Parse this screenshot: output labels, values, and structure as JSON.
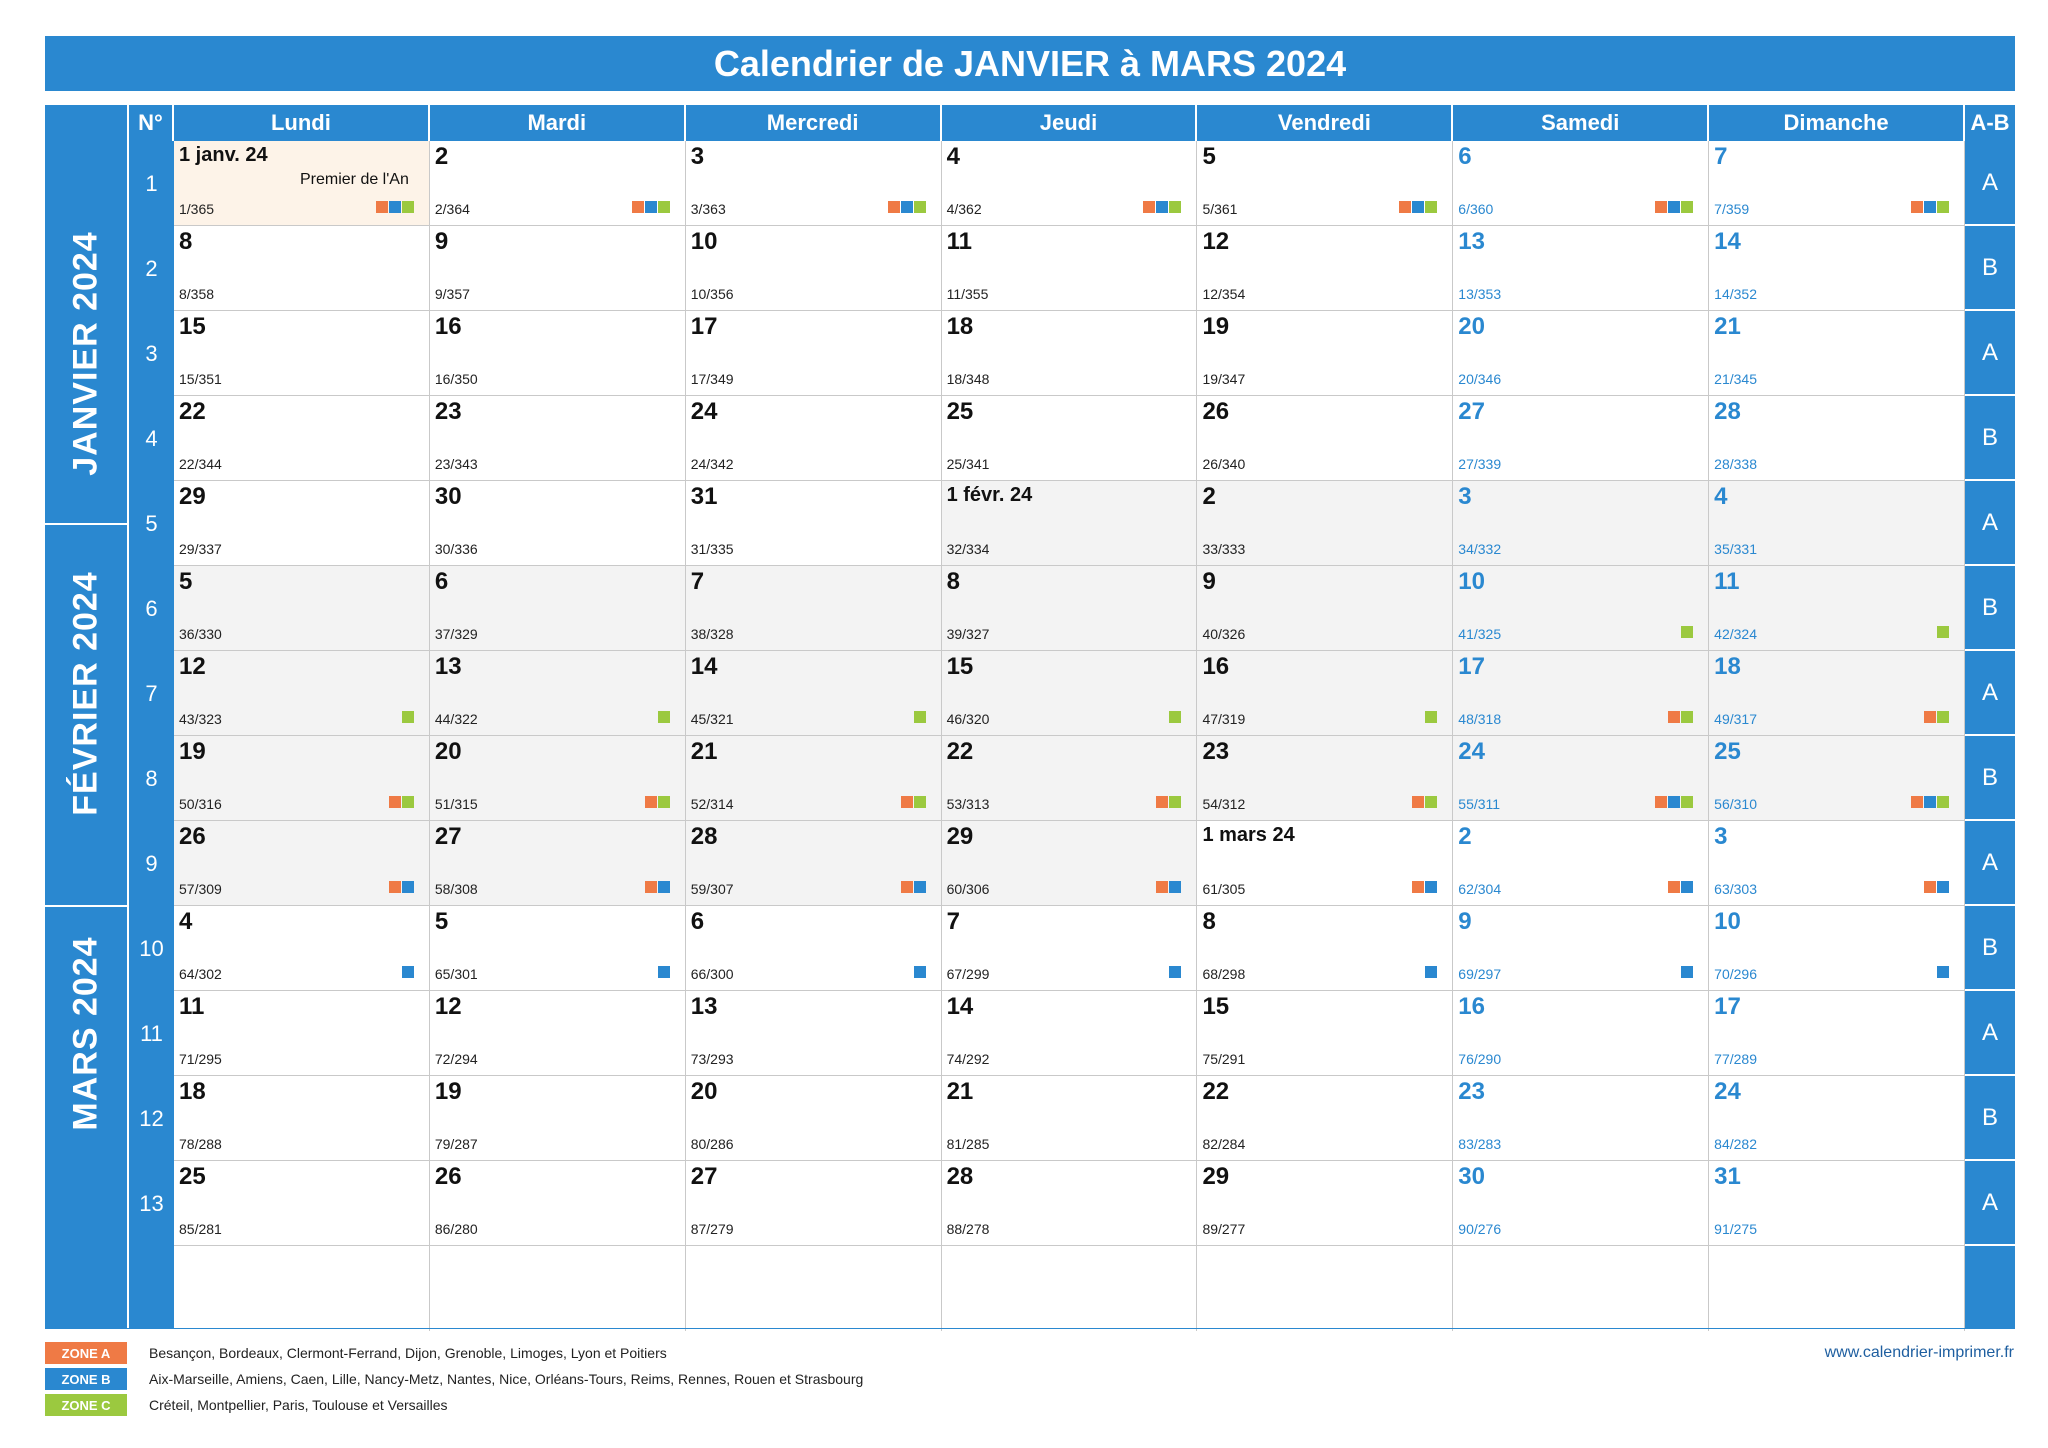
{
  "title": "Calendrier de JANVIER à MARS 2024",
  "header": {
    "weeknum": "N°",
    "days": [
      "Lundi",
      "Mardi",
      "Mercredi",
      "Jeudi",
      "Vendredi",
      "Samedi",
      "Dimanche"
    ],
    "ab": "A-B"
  },
  "months": [
    "JANVIER 2024",
    "FÉVRIER 2024",
    "MARS 2024"
  ],
  "weeks": [
    {
      "num": "1",
      "ab": "A",
      "days": [
        {
          "label": "1 janv. 24",
          "count": "1/365",
          "m": 1,
          "zones": [
            "A",
            "B",
            "C"
          ],
          "note": "Premier de l'An",
          "holiday": true
        },
        {
          "label": "2",
          "count": "2/364",
          "m": 1,
          "zones": [
            "A",
            "B",
            "C"
          ]
        },
        {
          "label": "3",
          "count": "3/363",
          "m": 1,
          "zones": [
            "A",
            "B",
            "C"
          ]
        },
        {
          "label": "4",
          "count": "4/362",
          "m": 1,
          "zones": [
            "A",
            "B",
            "C"
          ]
        },
        {
          "label": "5",
          "count": "5/361",
          "m": 1,
          "zones": [
            "A",
            "B",
            "C"
          ]
        },
        {
          "label": "6",
          "count": "6/360",
          "m": 1,
          "zones": [
            "A",
            "B",
            "C"
          ]
        },
        {
          "label": "7",
          "count": "7/359",
          "m": 1,
          "zones": [
            "A",
            "B",
            "C"
          ]
        }
      ]
    },
    {
      "num": "2",
      "ab": "B",
      "days": [
        {
          "label": "8",
          "count": "8/358",
          "m": 1,
          "zones": []
        },
        {
          "label": "9",
          "count": "9/357",
          "m": 1,
          "zones": []
        },
        {
          "label": "10",
          "count": "10/356",
          "m": 1,
          "zones": []
        },
        {
          "label": "11",
          "count": "11/355",
          "m": 1,
          "zones": []
        },
        {
          "label": "12",
          "count": "12/354",
          "m": 1,
          "zones": []
        },
        {
          "label": "13",
          "count": "13/353",
          "m": 1,
          "zones": []
        },
        {
          "label": "14",
          "count": "14/352",
          "m": 1,
          "zones": []
        }
      ]
    },
    {
      "num": "3",
      "ab": "A",
      "days": [
        {
          "label": "15",
          "count": "15/351",
          "m": 1,
          "zones": []
        },
        {
          "label": "16",
          "count": "16/350",
          "m": 1,
          "zones": []
        },
        {
          "label": "17",
          "count": "17/349",
          "m": 1,
          "zones": []
        },
        {
          "label": "18",
          "count": "18/348",
          "m": 1,
          "zones": []
        },
        {
          "label": "19",
          "count": "19/347",
          "m": 1,
          "zones": []
        },
        {
          "label": "20",
          "count": "20/346",
          "m": 1,
          "zones": []
        },
        {
          "label": "21",
          "count": "21/345",
          "m": 1,
          "zones": []
        }
      ]
    },
    {
      "num": "4",
      "ab": "B",
      "days": [
        {
          "label": "22",
          "count": "22/344",
          "m": 1,
          "zones": []
        },
        {
          "label": "23",
          "count": "23/343",
          "m": 1,
          "zones": []
        },
        {
          "label": "24",
          "count": "24/342",
          "m": 1,
          "zones": []
        },
        {
          "label": "25",
          "count": "25/341",
          "m": 1,
          "zones": []
        },
        {
          "label": "26",
          "count": "26/340",
          "m": 1,
          "zones": []
        },
        {
          "label": "27",
          "count": "27/339",
          "m": 1,
          "zones": []
        },
        {
          "label": "28",
          "count": "28/338",
          "m": 1,
          "zones": []
        }
      ]
    },
    {
      "num": "5",
      "ab": "A",
      "days": [
        {
          "label": "29",
          "count": "29/337",
          "m": 1,
          "zones": []
        },
        {
          "label": "30",
          "count": "30/336",
          "m": 1,
          "zones": []
        },
        {
          "label": "31",
          "count": "31/335",
          "m": 1,
          "zones": []
        },
        {
          "label": "1 févr. 24",
          "count": "32/334",
          "m": 2,
          "zones": []
        },
        {
          "label": "2",
          "count": "33/333",
          "m": 2,
          "zones": []
        },
        {
          "label": "3",
          "count": "34/332",
          "m": 2,
          "zones": []
        },
        {
          "label": "4",
          "count": "35/331",
          "m": 2,
          "zones": []
        }
      ]
    },
    {
      "num": "6",
      "ab": "B",
      "days": [
        {
          "label": "5",
          "count": "36/330",
          "m": 2,
          "zones": []
        },
        {
          "label": "6",
          "count": "37/329",
          "m": 2,
          "zones": []
        },
        {
          "label": "7",
          "count": "38/328",
          "m": 2,
          "zones": []
        },
        {
          "label": "8",
          "count": "39/327",
          "m": 2,
          "zones": []
        },
        {
          "label": "9",
          "count": "40/326",
          "m": 2,
          "zones": []
        },
        {
          "label": "10",
          "count": "41/325",
          "m": 2,
          "zones": [
            "C"
          ]
        },
        {
          "label": "11",
          "count": "42/324",
          "m": 2,
          "zones": [
            "C"
          ]
        }
      ]
    },
    {
      "num": "7",
      "ab": "A",
      "days": [
        {
          "label": "12",
          "count": "43/323",
          "m": 2,
          "zones": [
            "C"
          ]
        },
        {
          "label": "13",
          "count": "44/322",
          "m": 2,
          "zones": [
            "C"
          ]
        },
        {
          "label": "14",
          "count": "45/321",
          "m": 2,
          "zones": [
            "C"
          ]
        },
        {
          "label": "15",
          "count": "46/320",
          "m": 2,
          "zones": [
            "C"
          ]
        },
        {
          "label": "16",
          "count": "47/319",
          "m": 2,
          "zones": [
            "C"
          ]
        },
        {
          "label": "17",
          "count": "48/318",
          "m": 2,
          "zones": [
            "A",
            "C"
          ]
        },
        {
          "label": "18",
          "count": "49/317",
          "m": 2,
          "zones": [
            "A",
            "C"
          ]
        }
      ]
    },
    {
      "num": "8",
      "ab": "B",
      "days": [
        {
          "label": "19",
          "count": "50/316",
          "m": 2,
          "zones": [
            "A",
            "C"
          ]
        },
        {
          "label": "20",
          "count": "51/315",
          "m": 2,
          "zones": [
            "A",
            "C"
          ]
        },
        {
          "label": "21",
          "count": "52/314",
          "m": 2,
          "zones": [
            "A",
            "C"
          ]
        },
        {
          "label": "22",
          "count": "53/313",
          "m": 2,
          "zones": [
            "A",
            "C"
          ]
        },
        {
          "label": "23",
          "count": "54/312",
          "m": 2,
          "zones": [
            "A",
            "C"
          ]
        },
        {
          "label": "24",
          "count": "55/311",
          "m": 2,
          "zones": [
            "A",
            "B",
            "C"
          ]
        },
        {
          "label": "25",
          "count": "56/310",
          "m": 2,
          "zones": [
            "A",
            "B",
            "C"
          ]
        }
      ]
    },
    {
      "num": "9",
      "ab": "A",
      "days": [
        {
          "label": "26",
          "count": "57/309",
          "m": 2,
          "zones": [
            "A",
            "B"
          ]
        },
        {
          "label": "27",
          "count": "58/308",
          "m": 2,
          "zones": [
            "A",
            "B"
          ]
        },
        {
          "label": "28",
          "count": "59/307",
          "m": 2,
          "zones": [
            "A",
            "B"
          ]
        },
        {
          "label": "29",
          "count": "60/306",
          "m": 2,
          "zones": [
            "A",
            "B"
          ]
        },
        {
          "label": "1 mars 24",
          "count": "61/305",
          "m": 3,
          "zones": [
            "A",
            "B"
          ]
        },
        {
          "label": "2",
          "count": "62/304",
          "m": 3,
          "zones": [
            "A",
            "B"
          ]
        },
        {
          "label": "3",
          "count": "63/303",
          "m": 3,
          "zones": [
            "A",
            "B"
          ]
        }
      ]
    },
    {
      "num": "10",
      "ab": "B",
      "days": [
        {
          "label": "4",
          "count": "64/302",
          "m": 3,
          "zones": [
            "B"
          ]
        },
        {
          "label": "5",
          "count": "65/301",
          "m": 3,
          "zones": [
            "B"
          ]
        },
        {
          "label": "6",
          "count": "66/300",
          "m": 3,
          "zones": [
            "B"
          ]
        },
        {
          "label": "7",
          "count": "67/299",
          "m": 3,
          "zones": [
            "B"
          ]
        },
        {
          "label": "8",
          "count": "68/298",
          "m": 3,
          "zones": [
            "B"
          ]
        },
        {
          "label": "9",
          "count": "69/297",
          "m": 3,
          "zones": [
            "B"
          ]
        },
        {
          "label": "10",
          "count": "70/296",
          "m": 3,
          "zones": [
            "B"
          ]
        }
      ]
    },
    {
      "num": "11",
      "ab": "A",
      "days": [
        {
          "label": "11",
          "count": "71/295",
          "m": 3,
          "zones": []
        },
        {
          "label": "12",
          "count": "72/294",
          "m": 3,
          "zones": []
        },
        {
          "label": "13",
          "count": "73/293",
          "m": 3,
          "zones": []
        },
        {
          "label": "14",
          "count": "74/292",
          "m": 3,
          "zones": []
        },
        {
          "label": "15",
          "count": "75/291",
          "m": 3,
          "zones": []
        },
        {
          "label": "16",
          "count": "76/290",
          "m": 3,
          "zones": []
        },
        {
          "label": "17",
          "count": "77/289",
          "m": 3,
          "zones": []
        }
      ]
    },
    {
      "num": "12",
      "ab": "B",
      "days": [
        {
          "label": "18",
          "count": "78/288",
          "m": 3,
          "zones": []
        },
        {
          "label": "19",
          "count": "79/287",
          "m": 3,
          "zones": []
        },
        {
          "label": "20",
          "count": "80/286",
          "m": 3,
          "zones": []
        },
        {
          "label": "21",
          "count": "81/285",
          "m": 3,
          "zones": []
        },
        {
          "label": "22",
          "count": "82/284",
          "m": 3,
          "zones": []
        },
        {
          "label": "23",
          "count": "83/283",
          "m": 3,
          "zones": []
        },
        {
          "label": "24",
          "count": "84/282",
          "m": 3,
          "zones": []
        }
      ]
    },
    {
      "num": "13",
      "ab": "A",
      "days": [
        {
          "label": "25",
          "count": "85/281",
          "m": 3,
          "zones": []
        },
        {
          "label": "26",
          "count": "86/280",
          "m": 3,
          "zones": []
        },
        {
          "label": "27",
          "count": "87/279",
          "m": 3,
          "zones": []
        },
        {
          "label": "28",
          "count": "88/278",
          "m": 3,
          "zones": []
        },
        {
          "label": "29",
          "count": "89/277",
          "m": 3,
          "zones": []
        },
        {
          "label": "30",
          "count": "90/276",
          "m": 3,
          "zones": []
        },
        {
          "label": "31",
          "count": "91/275",
          "m": 3,
          "zones": []
        }
      ]
    }
  ],
  "zone_colors": {
    "A": "#ef7a45",
    "B": "#2a88d0",
    "C": "#9bc93f"
  },
  "accent_color": "#2a88d0",
  "february_shade": "#f3f3f3",
  "holiday_shade": "#fdf3e8",
  "legend": [
    {
      "label": "ZONE A",
      "color": "#ef7a45",
      "cities": "Besançon, Bordeaux, Clermont-Ferrand, Dijon, Grenoble, Limoges, Lyon et Poitiers"
    },
    {
      "label": "ZONE B",
      "color": "#2a88d0",
      "cities": "Aix-Marseille, Amiens, Caen, Lille, Nancy-Metz, Nantes, Nice, Orléans-Tours, Reims, Rennes, Rouen et Strasbourg"
    },
    {
      "label": "ZONE C",
      "color": "#9bc93f",
      "cities": "Créteil, Montpellier, Paris, Toulouse et Versailles"
    }
  ],
  "website": "www.calendrier-imprimer.fr"
}
